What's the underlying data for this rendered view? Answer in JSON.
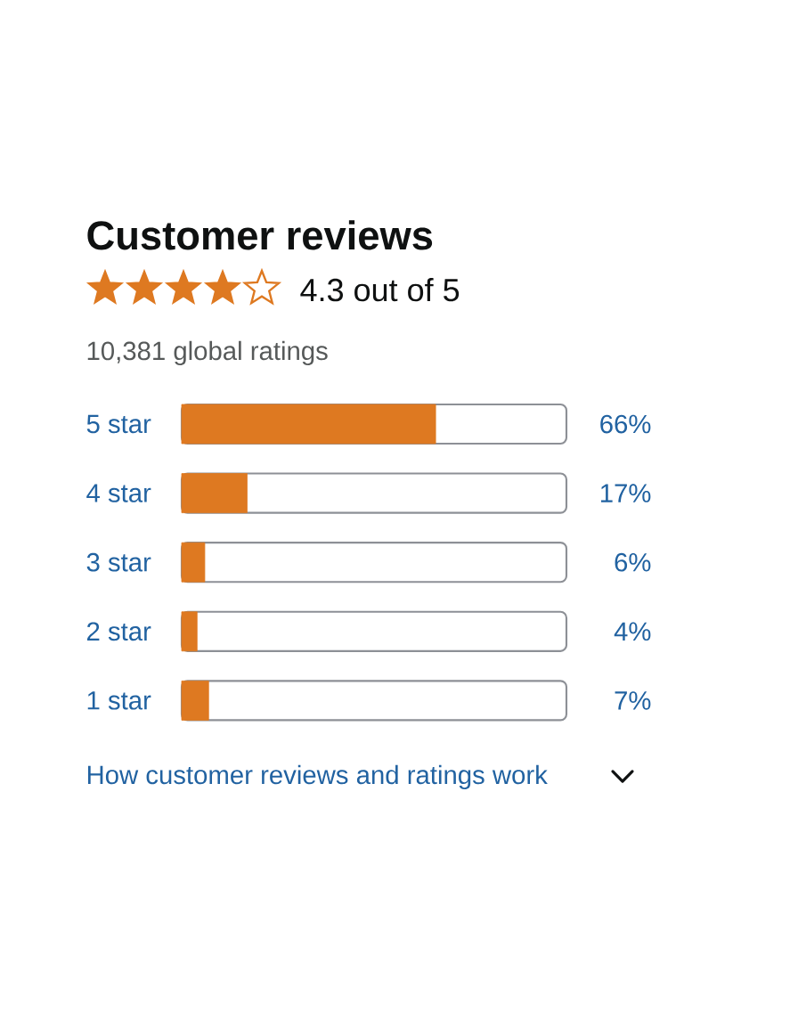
{
  "chart_data": {
    "type": "bar",
    "orientation": "horizontal",
    "title": "Customer reviews",
    "categories": [
      "5 star",
      "4 star",
      "3 star",
      "2 star",
      "1 star"
    ],
    "values": [
      66,
      17,
      6,
      4,
      7
    ],
    "value_labels": [
      "66%",
      "17%",
      "6%",
      "4%",
      "7%"
    ],
    "color": "#de7921",
    "xlim": [
      0,
      100
    ],
    "tick_labels": "y",
    "annotations": [
      "4.3 out of 5",
      "10,381 global ratings",
      "How customer reviews and ratings work"
    ]
  }
}
